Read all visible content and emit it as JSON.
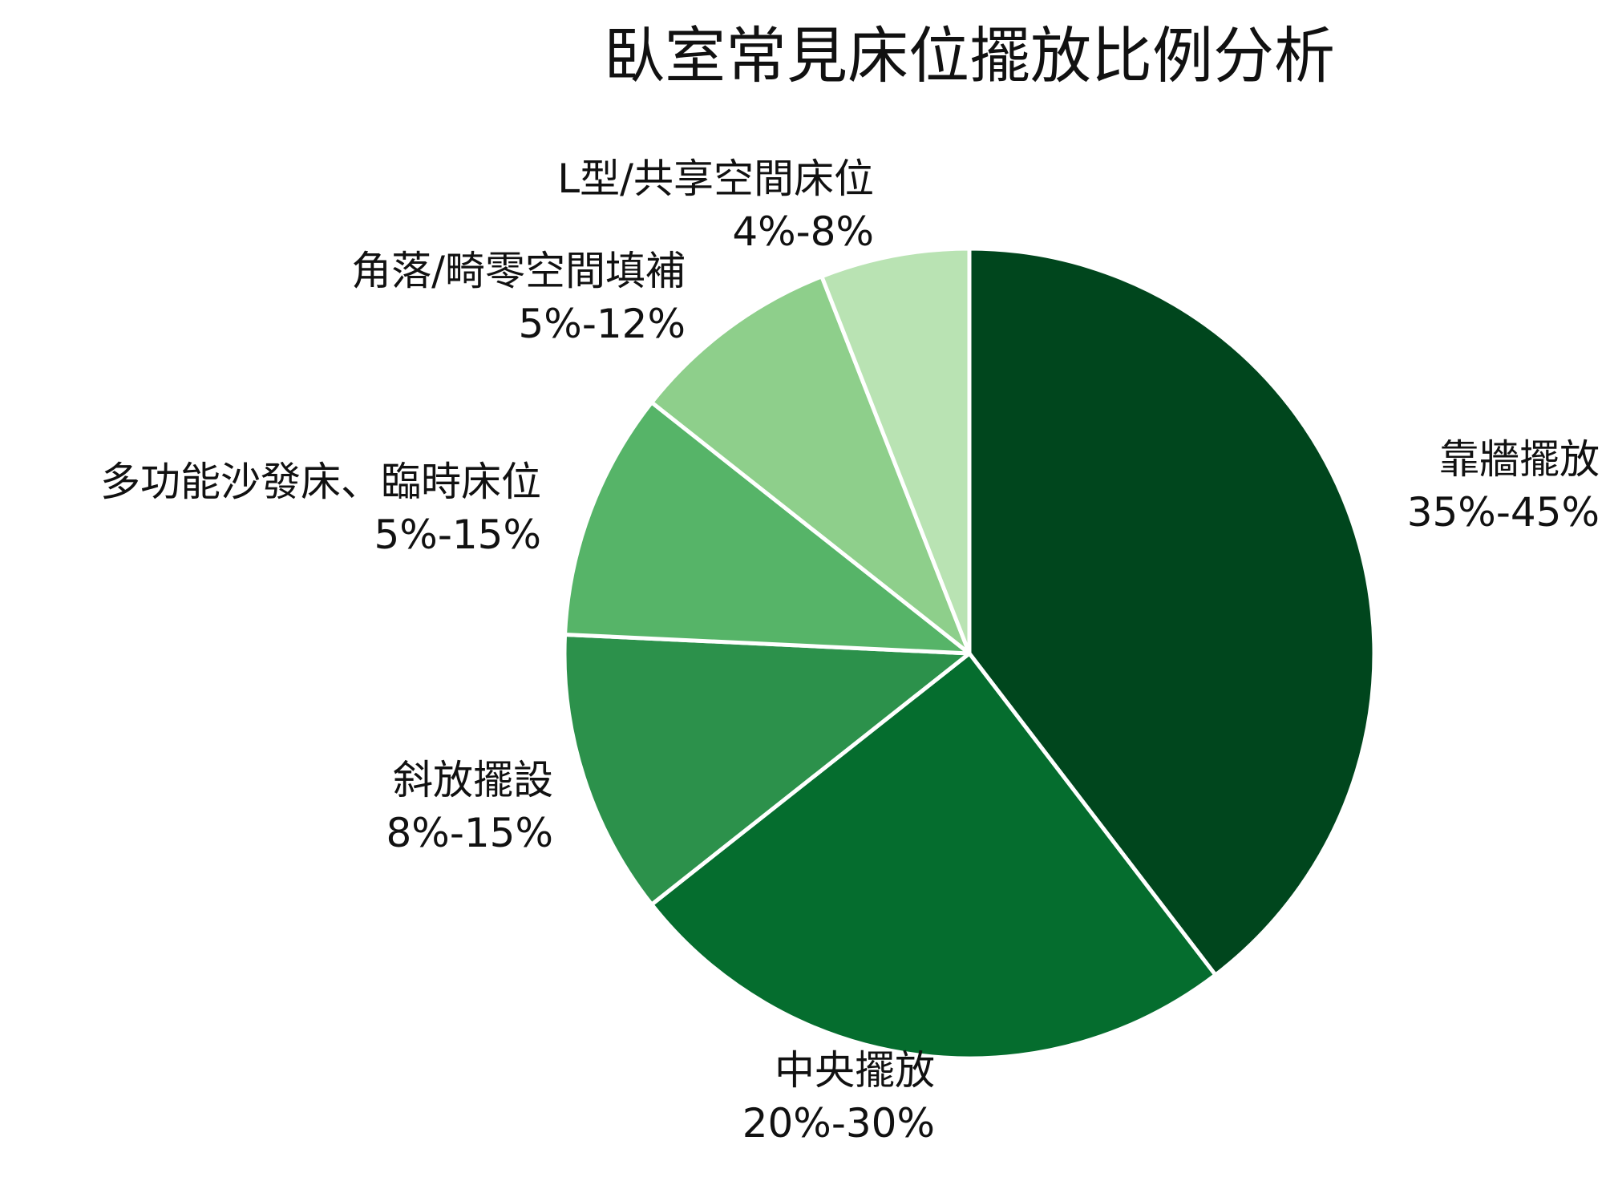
{
  "chart_data": {
    "type": "pie",
    "title": "臥室常見床位擺放比例分析",
    "slices": [
      {
        "label": "靠牆擺放",
        "range_text": "35%-45%",
        "value": 40,
        "color": "#00461d"
      },
      {
        "label": "中央擺放",
        "range_text": "20%-30%",
        "value": 25,
        "color": "#056d2e"
      },
      {
        "label": "斜放擺設",
        "range_text": "8%-15%",
        "value": 11.5,
        "color": "#2c914b"
      },
      {
        "label": "多功能沙發床、臨時床位",
        "range_text": "5%-15%",
        "value": 10,
        "color": "#56b468"
      },
      {
        "label": "角落/畸零空間填補",
        "range_text": "5%-12%",
        "value": 8.5,
        "color": "#8ecf8b"
      },
      {
        "label": "L型/共享空間床位",
        "range_text": "4%-8%",
        "value": 6,
        "color": "#b9e3b3"
      }
    ],
    "start_position": "top",
    "direction": "clockwise",
    "legend": "none"
  }
}
